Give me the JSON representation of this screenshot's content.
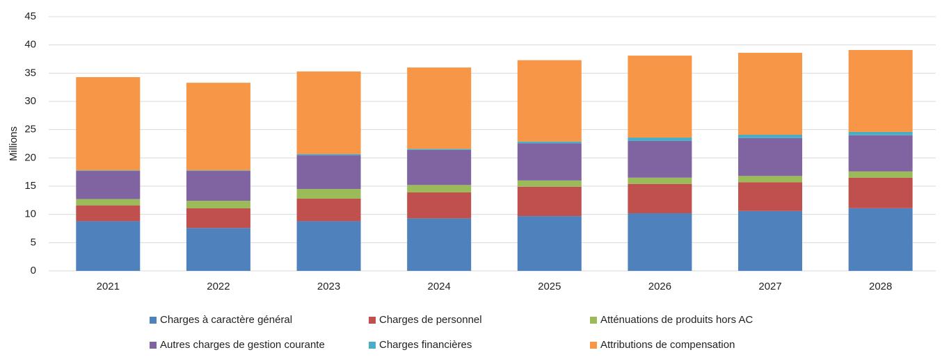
{
  "chart_data": {
    "type": "stacked_bar",
    "y_label": "Millions",
    "categories": [
      "2021",
      "2022",
      "2023",
      "2024",
      "2025",
      "2026",
      "2027",
      "2028"
    ],
    "series": [
      {
        "name": "Charges à caractère général",
        "color": "#4f81bd",
        "values": [
          8.8,
          7.6,
          8.8,
          9.3,
          9.7,
          10.2,
          10.6,
          11.1
        ]
      },
      {
        "name": "Charges de personnel",
        "color": "#c0504d",
        "values": [
          2.8,
          3.5,
          4.0,
          4.6,
          5.2,
          5.2,
          5.1,
          5.4
        ]
      },
      {
        "name": "Atténuations de produits hors AC",
        "color": "#9bbb59",
        "values": [
          1.1,
          1.3,
          1.7,
          1.3,
          1.1,
          1.1,
          1.1,
          1.1
        ]
      },
      {
        "name": "Autres charges de gestion courante",
        "color": "#8064a2",
        "values": [
          5.0,
          5.3,
          6.0,
          6.2,
          6.6,
          6.5,
          6.7,
          6.4
        ]
      },
      {
        "name": "Charges financières",
        "color": "#4bacc6",
        "values": [
          0.1,
          0.1,
          0.2,
          0.2,
          0.3,
          0.6,
          0.6,
          0.6
        ]
      },
      {
        "name": "Attributions de compensation",
        "color": "#f79646",
        "values": [
          16.5,
          15.5,
          14.6,
          14.4,
          14.4,
          14.5,
          14.5,
          14.5
        ]
      }
    ],
    "ylim": [
      0,
      45
    ],
    "yticks": [
      0,
      5,
      10,
      15,
      20,
      25,
      30,
      35,
      40,
      45
    ],
    "grid": true
  }
}
